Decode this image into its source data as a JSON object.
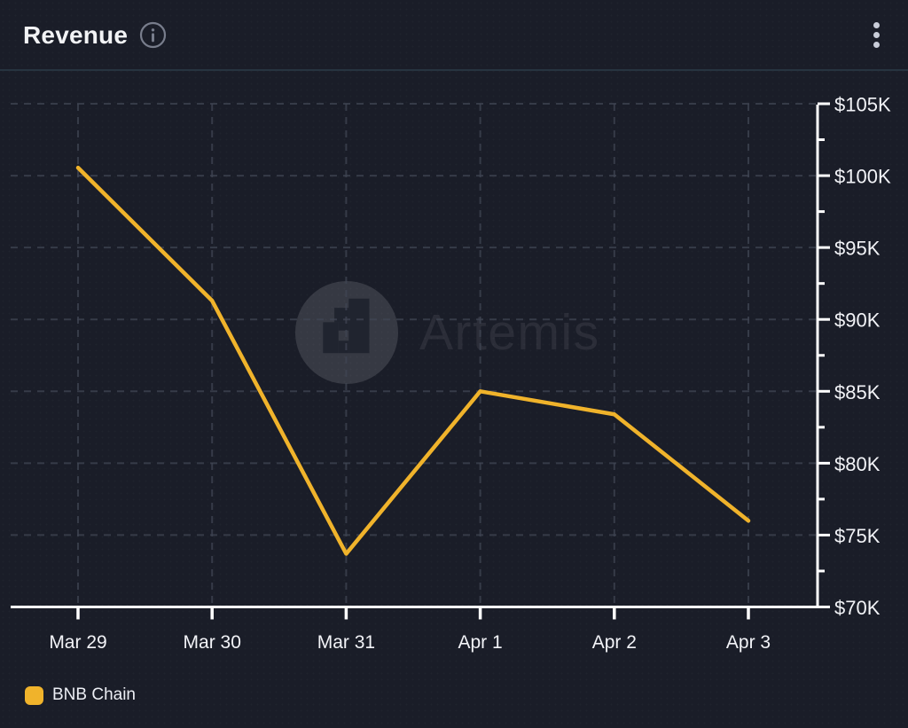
{
  "header": {
    "title": "Revenue",
    "info_icon": "info-circle-icon",
    "menu_icon": "kebab-menu-icon"
  },
  "watermark": {
    "text": "Artemis",
    "logo": "artemis-logo"
  },
  "legend": {
    "items": [
      {
        "label": "BNB Chain",
        "color": "#F0B32B"
      }
    ]
  },
  "colors": {
    "background": "#1A1D28",
    "series": "#F0B32B",
    "gridline": "#40455380",
    "axis": "#FFFFFF",
    "tick_text": "#F2F3F7",
    "muted_icon": "#8B90A0",
    "divider": "#273440"
  },
  "chart_data": {
    "type": "line",
    "categories": [
      "Mar 29",
      "Mar 30",
      "Mar 31",
      "Apr 1",
      "Apr 2",
      "Apr 3"
    ],
    "series": [
      {
        "name": "BNB Chain",
        "color": "#F0B32B",
        "values": [
          100550,
          91300,
          73700,
          85000,
          83400,
          76000
        ]
      }
    ],
    "title": "Revenue",
    "xlabel": "",
    "ylabel": "",
    "ylim": [
      70000,
      105000
    ],
    "y_tick_step": 5000,
    "y_tick_labels": [
      "$70K",
      "$75K",
      "$80K",
      "$85K",
      "$90K",
      "$95K",
      "$100K",
      "$105K"
    ],
    "grid": "dashed",
    "axis_side": "right",
    "legend_position": "bottom-left"
  }
}
